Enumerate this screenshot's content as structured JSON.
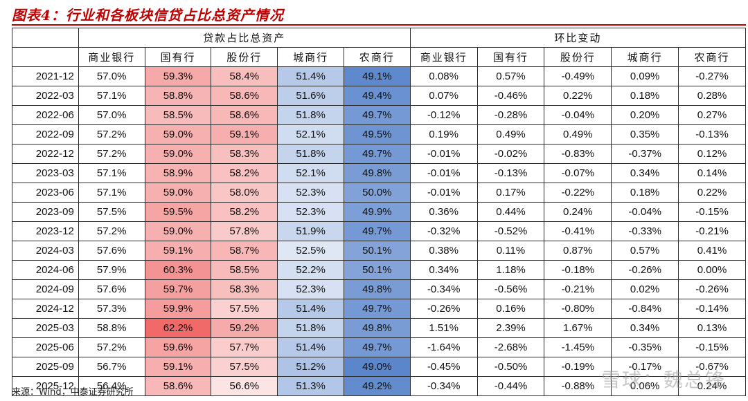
{
  "title": "图表4：行业和各板块信贷占比总资产情况",
  "header": {
    "group_left": "贷款占比总资产",
    "group_right": "环比变动",
    "columns": [
      "商业银行",
      "国有行",
      "股份行",
      "城商行",
      "农商行"
    ]
  },
  "rows": [
    {
      "period": "2021-12",
      "share": [
        "57.0%",
        "59.3%",
        "58.4%",
        "51.4%",
        "49.1%"
      ],
      "change": [
        "0.08%",
        "0.57%",
        "-0.49%",
        "0.09%",
        "-0.27%"
      ]
    },
    {
      "period": "2022-03",
      "share": [
        "57.1%",
        "58.8%",
        "58.6%",
        "51.6%",
        "49.4%"
      ],
      "change": [
        "0.07%",
        "-0.46%",
        "0.22%",
        "0.18%",
        "0.28%"
      ]
    },
    {
      "period": "2022-06",
      "share": [
        "57.0%",
        "58.5%",
        "58.6%",
        "51.8%",
        "49.7%"
      ],
      "change": [
        "-0.12%",
        "-0.28%",
        "-0.04%",
        "0.20%",
        "0.27%"
      ]
    },
    {
      "period": "2022-09",
      "share": [
        "57.2%",
        "59.0%",
        "59.1%",
        "52.1%",
        "49.5%"
      ],
      "change": [
        "0.19%",
        "0.49%",
        "0.49%",
        "0.35%",
        "-0.13%"
      ]
    },
    {
      "period": "2022-12",
      "share": [
        "57.2%",
        "59.0%",
        "58.3%",
        "51.8%",
        "49.7%"
      ],
      "change": [
        "-0.01%",
        "-0.02%",
        "-0.83%",
        "-0.37%",
        "0.12%"
      ]
    },
    {
      "period": "2023-03",
      "share": [
        "57.1%",
        "58.9%",
        "58.2%",
        "52.1%",
        "49.8%"
      ],
      "change": [
        "-0.01%",
        "-0.13%",
        "-0.07%",
        "0.34%",
        "0.14%"
      ]
    },
    {
      "period": "2023-06",
      "share": [
        "57.1%",
        "59.0%",
        "58.0%",
        "52.3%",
        "50.0%"
      ],
      "change": [
        "-0.01%",
        "0.17%",
        "-0.22%",
        "0.18%",
        "0.22%"
      ]
    },
    {
      "period": "2023-09",
      "share": [
        "57.5%",
        "59.5%",
        "58.2%",
        "52.3%",
        "49.9%"
      ],
      "change": [
        "0.36%",
        "0.44%",
        "0.24%",
        "-0.04%",
        "-0.15%"
      ]
    },
    {
      "period": "2023-12",
      "share": [
        "57.2%",
        "59.0%",
        "57.8%",
        "51.9%",
        "49.7%"
      ],
      "change": [
        "-0.32%",
        "-0.52%",
        "-0.41%",
        "-0.33%",
        "-0.21%"
      ]
    },
    {
      "period": "2024-03",
      "share": [
        "57.6%",
        "59.1%",
        "58.7%",
        "52.5%",
        "50.1%"
      ],
      "change": [
        "0.38%",
        "0.11%",
        "0.87%",
        "0.57%",
        "0.41%"
      ]
    },
    {
      "period": "2024-06",
      "share": [
        "57.9%",
        "60.3%",
        "58.5%",
        "52.2%",
        "50.1%"
      ],
      "change": [
        "0.34%",
        "1.18%",
        "-0.18%",
        "-0.26%",
        "0.00%"
      ]
    },
    {
      "period": "2024-09",
      "share": [
        "57.6%",
        "59.7%",
        "58.3%",
        "52.3%",
        "49.8%"
      ],
      "change": [
        "-0.34%",
        "-0.56%",
        "-0.21%",
        "0.02%",
        "-0.26%"
      ]
    },
    {
      "period": "2024-12",
      "share": [
        "57.3%",
        "59.9%",
        "57.5%",
        "51.4%",
        "49.7%"
      ],
      "change": [
        "-0.26%",
        "0.16%",
        "-0.80%",
        "-0.84%",
        "-0.14%"
      ]
    },
    {
      "period": "2025-03",
      "share": [
        "58.8%",
        "62.2%",
        "59.2%",
        "51.8%",
        "49.8%"
      ],
      "change": [
        "1.51%",
        "2.39%",
        "1.67%",
        "0.34%",
        "0.13%"
      ]
    },
    {
      "period": "2025-06",
      "share": [
        "57.2%",
        "59.6%",
        "57.7%",
        "51.4%",
        "49.7%"
      ],
      "change": [
        "-1.64%",
        "-2.68%",
        "-1.45%",
        "-0.35%",
        "-0.15%"
      ]
    },
    {
      "period": "2025-09",
      "share": [
        "56.7%",
        "59.1%",
        "57.5%",
        "51.2%",
        "49.0%"
      ],
      "change": [
        "-0.45%",
        "-0.50%",
        "-0.19%",
        "-0.17%",
        "-0.67%"
      ]
    },
    {
      "period": "2025-12",
      "share": [
        "56.4%",
        "58.6%",
        "56.6%",
        "51.3%",
        "49.2%"
      ],
      "change": [
        "-0.34%",
        "-0.44%",
        "-0.88%",
        "0.06%",
        "0.24%"
      ]
    }
  ],
  "cell_colors": {
    "red_light": "#fce4e4",
    "red_strong": "#f06a6a",
    "blue_light": "#dfe7f5",
    "blue_strong": "#5b86cc"
  },
  "source": "来源：Wind，中泰证券研究所",
  "watermark": "雪球：魏总锋"
}
